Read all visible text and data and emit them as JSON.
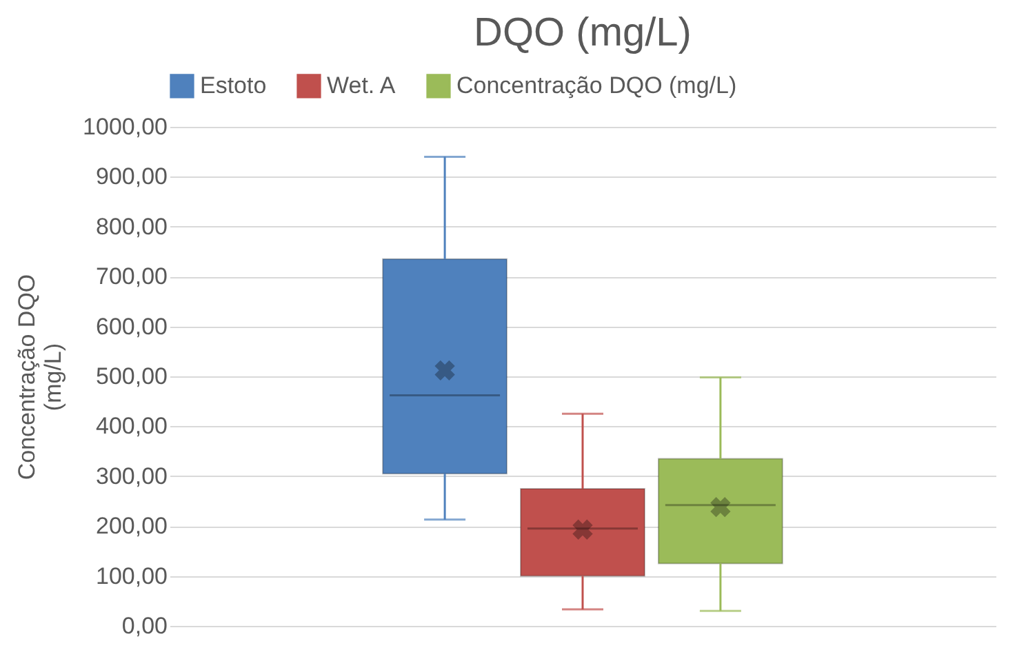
{
  "chart_data": {
    "type": "box",
    "title": "DQO (mg/L)",
    "ylabel": "Concentração DQO (mg/L)",
    "categories": [
      null
    ],
    "series": [
      {
        "name": "Estoto",
        "color": "#4f81bd",
        "boxes": [
          {
            "low": 213,
            "q1": 305,
            "median": 462,
            "q3": 735,
            "high": 940,
            "mean": 512
          }
        ]
      },
      {
        "name": "Wet. A",
        "color": "#c0504d",
        "boxes": [
          {
            "low": 33,
            "q1": 100,
            "median": 195,
            "q3": 275,
            "high": 425,
            "mean": 193
          }
        ]
      },
      {
        "name": "Concentração DQO (mg/L)",
        "color": "#9bbb59",
        "boxes": [
          {
            "low": 30,
            "q1": 125,
            "median": 242,
            "q3": 335,
            "high": 498,
            "mean": 238
          }
        ]
      }
    ],
    "ylim": [
      0,
      1000
    ],
    "yticks": [
      {
        "value": 0,
        "label": "0,00"
      },
      {
        "value": 100,
        "label": "100,00"
      },
      {
        "value": 200,
        "label": "200,00"
      },
      {
        "value": 300,
        "label": "300,00"
      },
      {
        "value": 400,
        "label": "400,00"
      },
      {
        "value": 500,
        "label": "500,00"
      },
      {
        "value": 600,
        "label": "600,00"
      },
      {
        "value": 700,
        "label": "700,00"
      },
      {
        "value": 800,
        "label": "800,00"
      },
      {
        "value": 900,
        "label": "900,00"
      },
      {
        "value": 1000,
        "label": "1000,00"
      }
    ],
    "grid": "y",
    "legend": "top"
  }
}
